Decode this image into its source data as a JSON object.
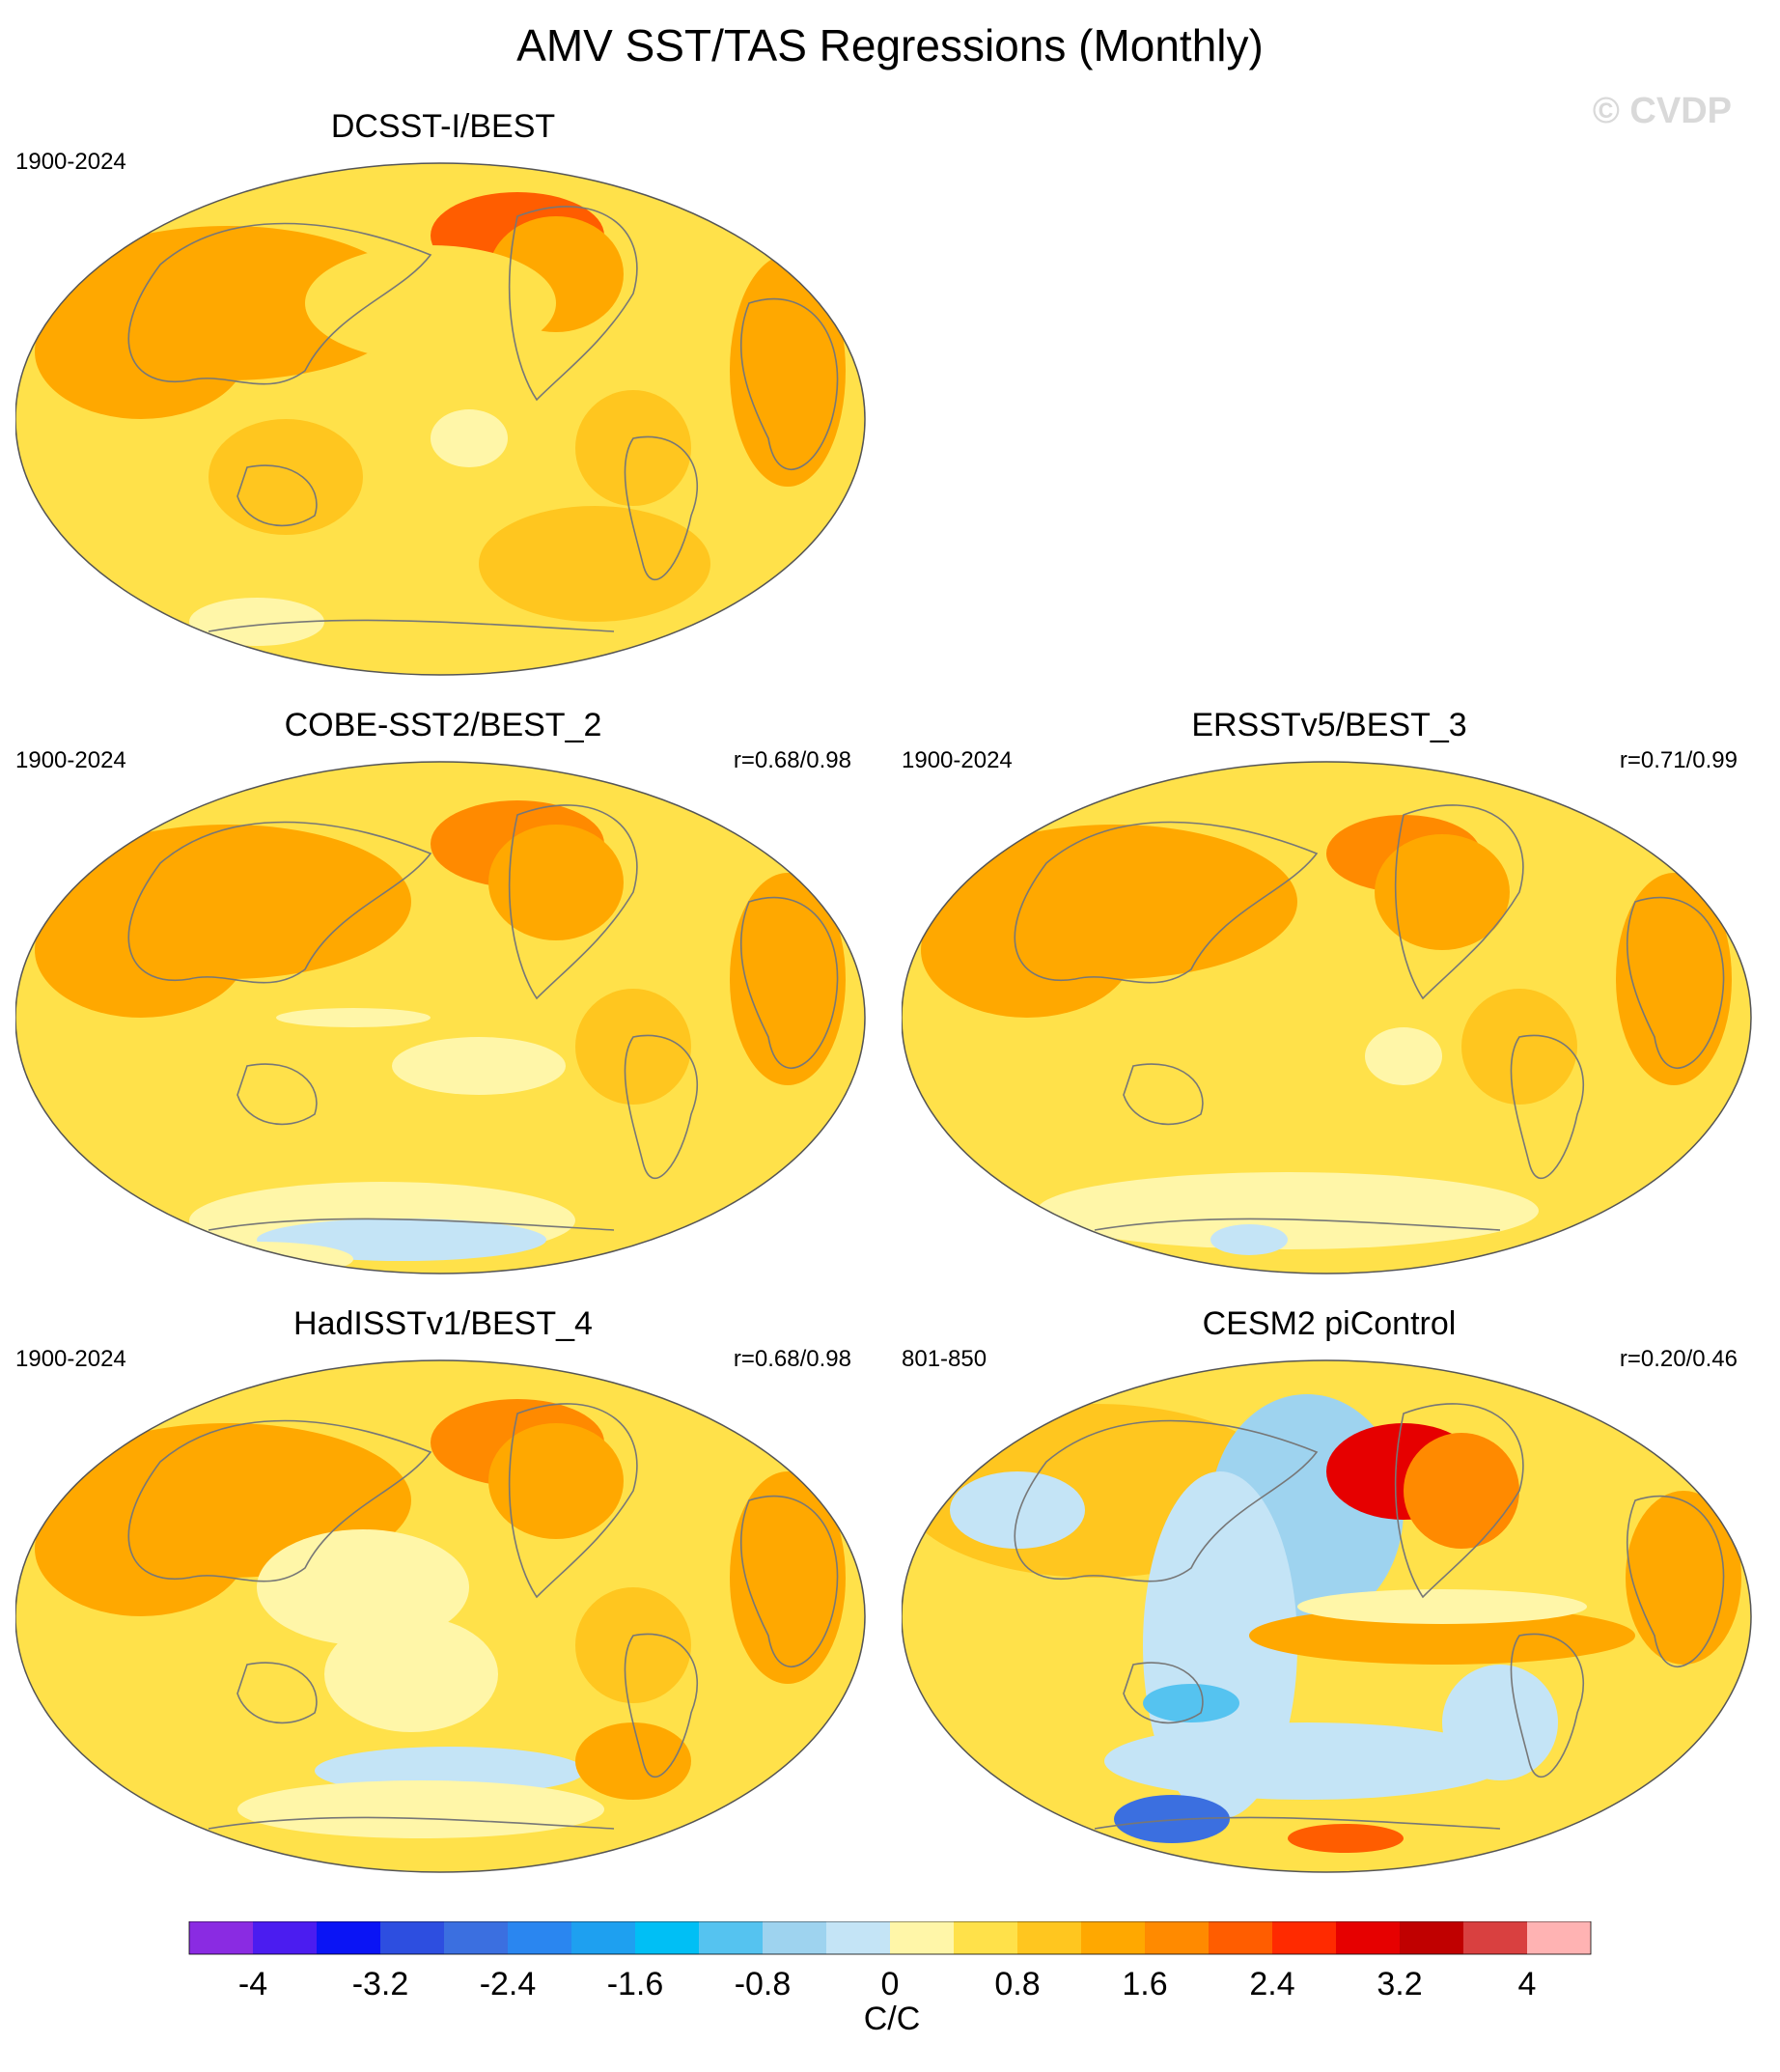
{
  "chart_data": {
    "type": "heatmap",
    "title": "AMV SST/TAS Regressions (Monthly)",
    "watermark": "© CVDP",
    "panels": [
      {
        "title": "DCSST-I/BEST",
        "period": "1900-2024",
        "r": null
      },
      {
        "title": "COBE-SST2/BEST_2",
        "period": "1900-2024",
        "r": "r=0.68/0.98"
      },
      {
        "title": "ERSSTv5/BEST_3",
        "period": "1900-2024",
        "r": "r=0.71/0.99"
      },
      {
        "title": "HadISSTv1/BEST_4",
        "period": "1900-2024",
        "r": "r=0.68/0.98"
      },
      {
        "title": "CESM2 piControl",
        "period": "801-850",
        "r": "r=0.20/0.46"
      }
    ],
    "colorbar": {
      "label": "C/C",
      "levels": [
        -4.4,
        -4,
        -3.6,
        -3.2,
        -2.8,
        -2.4,
        -2,
        -1.6,
        -1.2,
        -0.8,
        -0.4,
        0,
        0.4,
        0.8,
        1.2,
        1.6,
        2,
        2.4,
        2.8,
        3.2,
        3.6,
        4,
        4.4
      ],
      "tick_values": [
        -4,
        -3.2,
        -2.4,
        -1.6,
        -0.8,
        0,
        0.8,
        1.6,
        2.4,
        3.2,
        4
      ],
      "tick_labels": [
        "-4",
        "-3.2",
        "-2.4",
        "-1.6",
        "-0.8",
        "0",
        "0.8",
        "1.6",
        "2.4",
        "3.2",
        "4"
      ],
      "colors": [
        "#8a2be2",
        "#4b1cf0",
        "#0a14f5",
        "#2d4ee0",
        "#3b6fe0",
        "#2a86f0",
        "#1ea0f0",
        "#00bff5",
        "#55c3f0",
        "#9ed3ef",
        "#c4e4f6",
        "#fff6a8",
        "#ffe14a",
        "#ffc61f",
        "#ffa800",
        "#ff8a00",
        "#ff5d00",
        "#ff2a00",
        "#e60000",
        "#c00000",
        "#d94040",
        "#ffb3b3"
      ]
    }
  }
}
